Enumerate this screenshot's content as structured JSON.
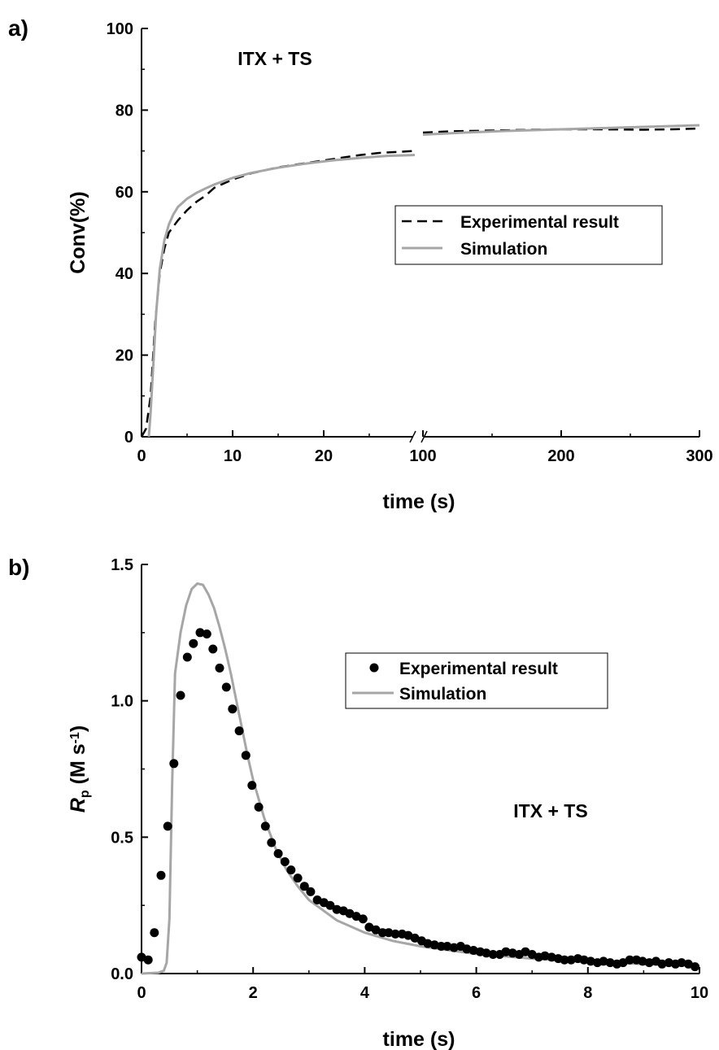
{
  "chart_data": [
    {
      "panel_label": "a)",
      "type": "line",
      "annotation": "ITX + TS",
      "xlabel": "time (s)",
      "ylabel": "Conv(%)",
      "ylim": [
        0,
        100
      ],
      "y_ticks": [
        "0",
        "20",
        "40",
        "60",
        "80",
        "100"
      ],
      "x_axis_break": {
        "left_segment": {
          "range": [
            0,
            30
          ],
          "ticks": [
            "0",
            "10",
            "20"
          ]
        },
        "right_segment": {
          "range": [
            100,
            300
          ],
          "ticks": [
            "100",
            "200",
            "300"
          ]
        }
      },
      "legend": {
        "position": "center-right",
        "entries": [
          "Experimental result",
          "Simulation"
        ]
      },
      "series": [
        {
          "name": "Experimental result",
          "style": "dashed",
          "color": "#000000",
          "left_points": [
            [
              0,
              0
            ],
            [
              0.5,
              2
            ],
            [
              1,
              10
            ],
            [
              1.5,
              28
            ],
            [
              2,
              40
            ],
            [
              2.5,
              46
            ],
            [
              3,
              50
            ],
            [
              4,
              53
            ],
            [
              5,
              55.5
            ],
            [
              6,
              57.5
            ],
            [
              7,
              59
            ],
            [
              8,
              61
            ],
            [
              10,
              63
            ],
            [
              12,
              64.5
            ],
            [
              15,
              66
            ],
            [
              18,
              67
            ],
            [
              21,
              68
            ],
            [
              24,
              69
            ],
            [
              26,
              69.5
            ],
            [
              30,
              70
            ]
          ],
          "right_points": [
            [
              100,
              74.5
            ],
            [
              120,
              74.8
            ],
            [
              150,
              75.0
            ],
            [
              180,
              75.2
            ],
            [
              200,
              75.3
            ],
            [
              230,
              75.3
            ],
            [
              260,
              75.2
            ],
            [
              280,
              75.3
            ],
            [
              300,
              75.5
            ]
          ]
        },
        {
          "name": "Simulation",
          "style": "solid",
          "color": "#a6a6a6",
          "left_points": [
            [
              0.8,
              0
            ],
            [
              1,
              6
            ],
            [
              1.3,
              18
            ],
            [
              1.6,
              30
            ],
            [
              2,
              41
            ],
            [
              2.5,
              48
            ],
            [
              3,
              52
            ],
            [
              3.5,
              54.5
            ],
            [
              4,
              56.3
            ],
            [
              5,
              58.3
            ],
            [
              6,
              59.7
            ],
            [
              7,
              60.8
            ],
            [
              8,
              61.8
            ],
            [
              10,
              63.4
            ],
            [
              12,
              64.6
            ],
            [
              15,
              65.9
            ],
            [
              18,
              66.9
            ],
            [
              21,
              67.7
            ],
            [
              24,
              68.3
            ],
            [
              27,
              68.8
            ],
            [
              30,
              69
            ]
          ],
          "right_points": [
            [
              100,
              74
            ],
            [
              130,
              74.5
            ],
            [
              160,
              74.9
            ],
            [
              200,
              75.3
            ],
            [
              250,
              75.8
            ],
            [
              300,
              76.3
            ]
          ]
        }
      ]
    },
    {
      "panel_label": "b)",
      "type": "scatter",
      "annotation": "ITX + TS",
      "xlabel": "time (s)",
      "ylabel_main": "R",
      "ylabel_sub": "p",
      "ylabel_units": " (M s",
      "ylabel_sup": "-1",
      "ylabel_close": ")",
      "xlim": [
        0,
        10
      ],
      "ylim": [
        0,
        1.5
      ],
      "x_ticks": [
        "0",
        "2",
        "4",
        "6",
        "8",
        "10"
      ],
      "y_ticks": [
        "0.0",
        "0.5",
        "1.0",
        "1.5"
      ],
      "legend": {
        "position": "top-right",
        "entries": [
          "Experimental result",
          "Simulation"
        ]
      },
      "series": [
        {
          "name": "Experimental result",
          "style": "markers",
          "color": "#000000",
          "points": [
            [
              0,
              0.06
            ],
            [
              0.12,
              0.05
            ],
            [
              0.23,
              0.15
            ],
            [
              0.35,
              0.36
            ],
            [
              0.47,
              0.54
            ],
            [
              0.58,
              0.77
            ],
            [
              0.7,
              1.02
            ],
            [
              0.82,
              1.16
            ],
            [
              0.93,
              1.21
            ],
            [
              1.05,
              1.25
            ],
            [
              1.17,
              1.245
            ],
            [
              1.28,
              1.19
            ],
            [
              1.4,
              1.12
            ],
            [
              1.52,
              1.05
            ],
            [
              1.63,
              0.97
            ],
            [
              1.75,
              0.89
            ],
            [
              1.87,
              0.8
            ],
            [
              1.98,
              0.69
            ],
            [
              2.1,
              0.61
            ],
            [
              2.22,
              0.54
            ],
            [
              2.33,
              0.48
            ],
            [
              2.45,
              0.44
            ],
            [
              2.57,
              0.41
            ],
            [
              2.68,
              0.38
            ],
            [
              2.8,
              0.35
            ],
            [
              2.92,
              0.32
            ],
            [
              3.03,
              0.3
            ],
            [
              3.15,
              0.27
            ],
            [
              3.27,
              0.26
            ],
            [
              3.38,
              0.25
            ],
            [
              3.5,
              0.235
            ],
            [
              3.62,
              0.23
            ],
            [
              3.73,
              0.22
            ],
            [
              3.85,
              0.21
            ],
            [
              3.97,
              0.2
            ],
            [
              4.08,
              0.17
            ],
            [
              4.2,
              0.16
            ],
            [
              4.32,
              0.15
            ],
            [
              4.43,
              0.15
            ],
            [
              4.55,
              0.145
            ],
            [
              4.67,
              0.145
            ],
            [
              4.78,
              0.14
            ],
            [
              4.9,
              0.13
            ],
            [
              5.02,
              0.12
            ],
            [
              5.13,
              0.11
            ],
            [
              5.25,
              0.105
            ],
            [
              5.37,
              0.1
            ],
            [
              5.48,
              0.1
            ],
            [
              5.6,
              0.095
            ],
            [
              5.72,
              0.1
            ],
            [
              5.83,
              0.09
            ],
            [
              5.95,
              0.085
            ],
            [
              6.07,
              0.08
            ],
            [
              6.18,
              0.075
            ],
            [
              6.3,
              0.07
            ],
            [
              6.42,
              0.07
            ],
            [
              6.53,
              0.08
            ],
            [
              6.65,
              0.075
            ],
            [
              6.77,
              0.07
            ],
            [
              6.88,
              0.08
            ],
            [
              7.0,
              0.07
            ],
            [
              7.12,
              0.06
            ],
            [
              7.23,
              0.065
            ],
            [
              7.35,
              0.06
            ],
            [
              7.47,
              0.055
            ],
            [
              7.58,
              0.05
            ],
            [
              7.7,
              0.05
            ],
            [
              7.82,
              0.055
            ],
            [
              7.93,
              0.05
            ],
            [
              8.05,
              0.045
            ],
            [
              8.17,
              0.04
            ],
            [
              8.28,
              0.045
            ],
            [
              8.4,
              0.04
            ],
            [
              8.52,
              0.035
            ],
            [
              8.63,
              0.04
            ],
            [
              8.75,
              0.05
            ],
            [
              8.87,
              0.05
            ],
            [
              8.98,
              0.045
            ],
            [
              9.1,
              0.04
            ],
            [
              9.22,
              0.045
            ],
            [
              9.33,
              0.035
            ],
            [
              9.45,
              0.04
            ],
            [
              9.57,
              0.035
            ],
            [
              9.68,
              0.04
            ],
            [
              9.8,
              0.035
            ],
            [
              9.92,
              0.025
            ]
          ]
        },
        {
          "name": "Simulation",
          "style": "solid",
          "color": "#a6a6a6",
          "points": [
            [
              0,
              0
            ],
            [
              0.3,
              0.003
            ],
            [
              0.4,
              0.01
            ],
            [
              0.45,
              0.04
            ],
            [
              0.5,
              0.2
            ],
            [
              0.55,
              0.7
            ],
            [
              0.6,
              1.1
            ],
            [
              0.7,
              1.25
            ],
            [
              0.8,
              1.35
            ],
            [
              0.9,
              1.41
            ],
            [
              1.0,
              1.43
            ],
            [
              1.1,
              1.425
            ],
            [
              1.2,
              1.39
            ],
            [
              1.3,
              1.34
            ],
            [
              1.4,
              1.27
            ],
            [
              1.5,
              1.19
            ],
            [
              1.6,
              1.1
            ],
            [
              1.7,
              1.0
            ],
            [
              1.8,
              0.9
            ],
            [
              1.9,
              0.8
            ],
            [
              2.0,
              0.71
            ],
            [
              2.2,
              0.57
            ],
            [
              2.4,
              0.46
            ],
            [
              2.6,
              0.38
            ],
            [
              2.8,
              0.32
            ],
            [
              3.0,
              0.27
            ],
            [
              3.5,
              0.195
            ],
            [
              4.0,
              0.15
            ],
            [
              4.5,
              0.12
            ],
            [
              5.0,
              0.1
            ],
            [
              6.0,
              0.072
            ],
            [
              7.0,
              0.055
            ],
            [
              8.0,
              0.043
            ],
            [
              9.0,
              0.035
            ],
            [
              10.0,
              0.029
            ]
          ]
        }
      ]
    }
  ]
}
